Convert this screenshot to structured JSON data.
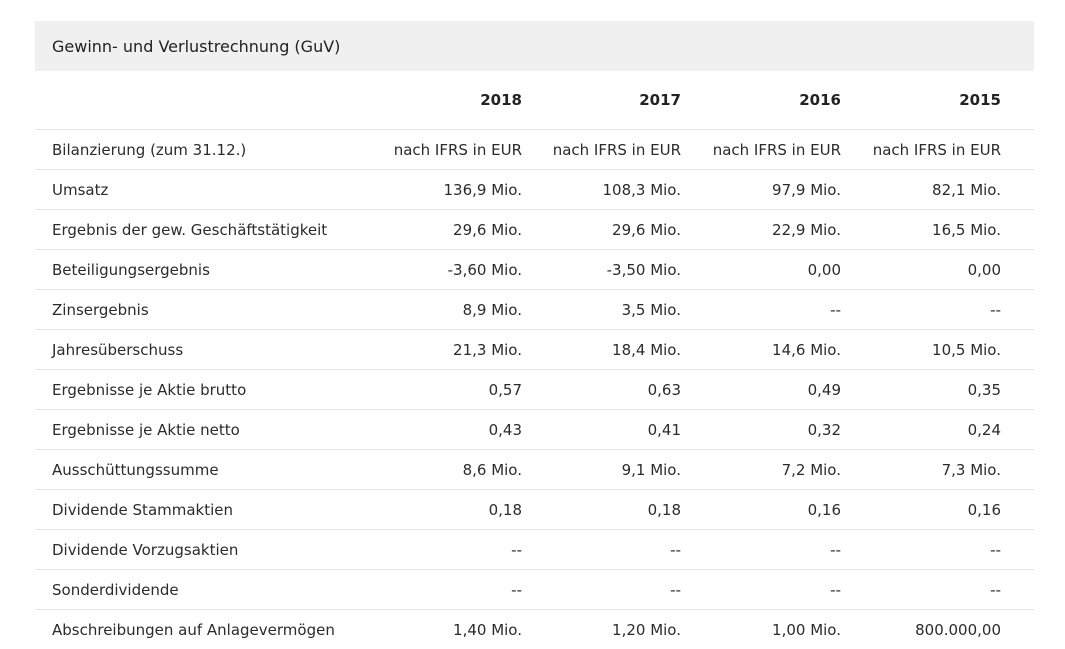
{
  "section": {
    "title": "Gewinn- und Verlustrechnung (GuV)"
  },
  "table": {
    "years": [
      "2018",
      "2017",
      "2016",
      "2015"
    ],
    "rows": [
      {
        "label": "Bilanzierung (zum 31.12.)",
        "values": [
          "nach IFRS in EUR",
          "nach IFRS in EUR",
          "nach IFRS in EUR",
          "nach IFRS in EUR"
        ]
      },
      {
        "label": "Umsatz",
        "values": [
          "136,9 Mio.",
          "108,3 Mio.",
          "97,9 Mio.",
          "82,1 Mio."
        ]
      },
      {
        "label": "Ergebnis der gew. Geschäftstätigkeit",
        "values": [
          "29,6 Mio.",
          "29,6 Mio.",
          "22,9 Mio.",
          "16,5 Mio."
        ]
      },
      {
        "label": "Beteiligungsergebnis",
        "values": [
          "-3,60 Mio.",
          "-3,50 Mio.",
          "0,00",
          "0,00"
        ]
      },
      {
        "label": "Zinsergebnis",
        "values": [
          "8,9 Mio.",
          "3,5 Mio.",
          "--",
          "--"
        ]
      },
      {
        "label": "Jahresüberschuss",
        "values": [
          "21,3 Mio.",
          "18,4 Mio.",
          "14,6 Mio.",
          "10,5 Mio."
        ]
      },
      {
        "label": "Ergebnisse je Aktie brutto",
        "values": [
          "0,57",
          "0,63",
          "0,49",
          "0,35"
        ]
      },
      {
        "label": "Ergebnisse je Aktie netto",
        "values": [
          "0,43",
          "0,41",
          "0,32",
          "0,24"
        ]
      },
      {
        "label": "Ausschüttungssumme",
        "values": [
          "8,6 Mio.",
          "9,1 Mio.",
          "7,2 Mio.",
          "7,3 Mio."
        ]
      },
      {
        "label": "Dividende Stammaktien",
        "values": [
          "0,18",
          "0,18",
          "0,16",
          "0,16"
        ]
      },
      {
        "label": "Dividende Vorzugsaktien",
        "values": [
          "--",
          "--",
          "--",
          "--"
        ]
      },
      {
        "label": "Sonderdividende",
        "values": [
          "--",
          "--",
          "--",
          "--"
        ]
      },
      {
        "label": "Abschreibungen auf Anlagevermögen",
        "values": [
          "1,40 Mio.",
          "1,20 Mio.",
          "1,00 Mio.",
          "800.000,00"
        ]
      }
    ]
  }
}
